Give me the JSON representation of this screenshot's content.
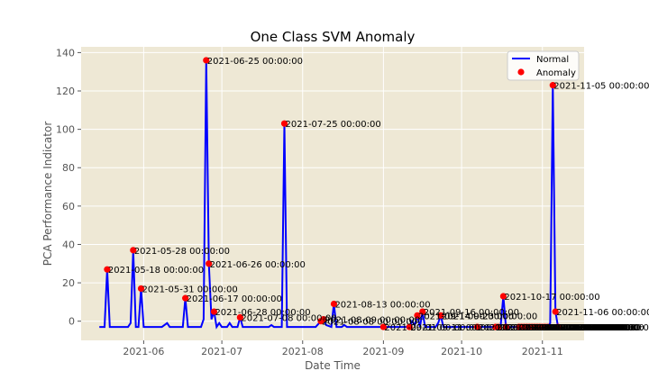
{
  "chart_data": {
    "type": "line",
    "title": "One Class SVM Anomaly",
    "xlabel": "Date Time",
    "ylabel": "PCA Performance Indicator",
    "xlim": [
      "2021-05-08",
      "2021-11-17"
    ],
    "ylim": [
      -10,
      143
    ],
    "grid": true,
    "legend_position": "top-right",
    "colors": {
      "plot_bg": "#EEE8D5",
      "grid": "#ffffff",
      "line": "#0000ff",
      "anomaly": "#ff0000"
    },
    "x_ticks": [
      {
        "date": "2021-06-01",
        "label": "2021-06"
      },
      {
        "date": "2021-07-01",
        "label": "2021-07"
      },
      {
        "date": "2021-08-01",
        "label": "2021-08"
      },
      {
        "date": "2021-09-01",
        "label": "2021-09"
      },
      {
        "date": "2021-10-01",
        "label": "2021-10"
      },
      {
        "date": "2021-11-01",
        "label": "2021-11"
      }
    ],
    "y_ticks": [
      0,
      20,
      40,
      60,
      80,
      100,
      120,
      140
    ],
    "series": [
      {
        "name": "Normal",
        "points": [
          [
            "2021-05-15",
            -3
          ],
          [
            "2021-05-17",
            -3
          ],
          [
            "2021-05-18",
            27
          ],
          [
            "2021-05-19",
            -3
          ],
          [
            "2021-05-26",
            -3
          ],
          [
            "2021-05-27",
            -1
          ],
          [
            "2021-05-28",
            37
          ],
          [
            "2021-05-29",
            -3
          ],
          [
            "2021-05-30",
            -3
          ],
          [
            "2021-05-31",
            17
          ],
          [
            "2021-06-01",
            -3
          ],
          [
            "2021-06-08",
            -3
          ],
          [
            "2021-06-10",
            -1
          ],
          [
            "2021-06-11",
            -3
          ],
          [
            "2021-06-16",
            -3
          ],
          [
            "2021-06-17",
            12
          ],
          [
            "2021-06-18",
            -3
          ],
          [
            "2021-06-23",
            -3
          ],
          [
            "2021-06-24",
            1
          ],
          [
            "2021-06-25",
            136
          ],
          [
            "2021-06-26",
            30
          ],
          [
            "2021-06-27",
            1
          ],
          [
            "2021-06-28",
            5
          ],
          [
            "2021-06-29",
            -3
          ],
          [
            "2021-06-30",
            -1
          ],
          [
            "2021-07-01",
            -3
          ],
          [
            "2021-07-03",
            -3
          ],
          [
            "2021-07-04",
            -1
          ],
          [
            "2021-07-05",
            -3
          ],
          [
            "2021-07-07",
            -3
          ],
          [
            "2021-07-08",
            2
          ],
          [
            "2021-07-09",
            -3
          ],
          [
            "2021-07-19",
            -3
          ],
          [
            "2021-07-20",
            -2
          ],
          [
            "2021-07-21",
            -3
          ],
          [
            "2021-07-24",
            -3
          ],
          [
            "2021-07-25",
            103
          ],
          [
            "2021-07-26",
            -3
          ],
          [
            "2021-08-06",
            -3
          ],
          [
            "2021-08-08",
            0
          ],
          [
            "2021-08-09",
            1
          ],
          [
            "2021-08-10",
            -2
          ],
          [
            "2021-08-12",
            -3
          ],
          [
            "2021-08-13",
            9
          ],
          [
            "2021-08-14",
            -3
          ],
          [
            "2021-08-16",
            -3
          ],
          [
            "2021-08-17",
            -2
          ],
          [
            "2021-08-18",
            -3
          ],
          [
            "2021-09-01",
            -3
          ],
          [
            "2021-09-11",
            -3
          ],
          [
            "2021-09-12",
            0
          ],
          [
            "2021-09-13",
            -2
          ],
          [
            "2021-09-14",
            3
          ],
          [
            "2021-09-15",
            -3
          ],
          [
            "2021-09-16",
            5
          ],
          [
            "2021-09-17",
            -3
          ],
          [
            "2021-09-21",
            -3
          ],
          [
            "2021-09-22",
            -1
          ],
          [
            "2021-09-23",
            3
          ],
          [
            "2021-09-24",
            -3
          ],
          [
            "2021-10-07",
            -3
          ],
          [
            "2021-10-14",
            -3
          ],
          [
            "2021-10-15",
            -3
          ],
          [
            "2021-10-16",
            -2
          ],
          [
            "2021-10-17",
            13
          ],
          [
            "2021-10-18",
            -3
          ],
          [
            "2021-10-25",
            -3
          ],
          [
            "2021-11-03",
            -3
          ],
          [
            "2021-11-04",
            -1
          ],
          [
            "2021-11-05",
            123
          ],
          [
            "2021-11-06",
            5
          ],
          [
            "2021-11-07",
            -3
          ],
          [
            "2021-11-08",
            -3
          ]
        ]
      },
      {
        "name": "Anomaly",
        "points": [
          [
            "2021-05-18",
            27
          ],
          [
            "2021-05-28",
            37
          ],
          [
            "2021-05-31",
            17
          ],
          [
            "2021-06-17",
            12
          ],
          [
            "2021-06-25",
            136
          ],
          [
            "2021-06-26",
            30
          ],
          [
            "2021-06-28",
            5
          ],
          [
            "2021-07-08",
            2
          ],
          [
            "2021-07-25",
            103
          ],
          [
            "2021-08-08",
            0
          ],
          [
            "2021-08-09",
            1
          ],
          [
            "2021-08-13",
            9
          ],
          [
            "2021-09-01",
            -3
          ],
          [
            "2021-09-11",
            -3
          ],
          [
            "2021-09-14",
            3
          ],
          [
            "2021-09-16",
            5
          ],
          [
            "2021-09-23",
            3
          ],
          [
            "2021-10-07",
            -3
          ],
          [
            "2021-10-14",
            -3
          ],
          [
            "2021-10-15",
            -3
          ],
          [
            "2021-10-17",
            13
          ],
          [
            "2021-10-18",
            -3
          ],
          [
            "2021-10-23",
            -3
          ],
          [
            "2021-10-24",
            -3
          ],
          [
            "2021-10-25",
            -3
          ],
          [
            "2021-10-26",
            -3
          ],
          [
            "2021-10-27",
            -3
          ],
          [
            "2021-10-28",
            -3
          ],
          [
            "2021-10-29",
            -3
          ],
          [
            "2021-10-30",
            -3
          ],
          [
            "2021-10-31",
            -3
          ],
          [
            "2021-11-01",
            -3
          ],
          [
            "2021-11-02",
            -3
          ],
          [
            "2021-11-03",
            -3
          ],
          [
            "2021-11-05",
            123
          ],
          [
            "2021-11-06",
            5
          ],
          [
            "2021-11-07",
            -3
          ]
        ]
      }
    ],
    "annotations": [
      {
        "date": "2021-05-18",
        "y": 27,
        "text": "2021-05-18 00:00:00"
      },
      {
        "date": "2021-05-28",
        "y": 37,
        "text": "2021-05-28 00:00:00"
      },
      {
        "date": "2021-05-31",
        "y": 17,
        "text": "2021-05-31 00:00:00"
      },
      {
        "date": "2021-06-17",
        "y": 12,
        "text": "2021-06-17 00:00:00"
      },
      {
        "date": "2021-06-25",
        "y": 136,
        "text": "2021-06-25 00:00:00"
      },
      {
        "date": "2021-06-26",
        "y": 30,
        "text": "2021-06-26 00:00:00"
      },
      {
        "date": "2021-06-28",
        "y": 5,
        "text": "2021-06-28 00:00:00"
      },
      {
        "date": "2021-07-08",
        "y": 2,
        "text": "2021-07-08 00:00:00"
      },
      {
        "date": "2021-07-25",
        "y": 103,
        "text": "2021-07-25 00:00:00"
      },
      {
        "date": "2021-08-08",
        "y": 0,
        "text": "2021-08-08 00:00:00"
      },
      {
        "date": "2021-08-09",
        "y": 1,
        "text": "2021-08-09 00:00:00"
      },
      {
        "date": "2021-08-13",
        "y": 9,
        "text": "2021-08-13 00:00:00"
      },
      {
        "date": "2021-09-01",
        "y": -3,
        "text": "2021-09-01 00:00:00"
      },
      {
        "date": "2021-09-11",
        "y": -3,
        "text": "2021-09-11 00:00:00"
      },
      {
        "date": "2021-09-14",
        "y": 3,
        "text": "2021-09-14 00:00:00"
      },
      {
        "date": "2021-09-16",
        "y": 5,
        "text": "2021-09-16 00:00:00"
      },
      {
        "date": "2021-09-23",
        "y": 3,
        "text": "2021-09-23 00:00:00"
      },
      {
        "date": "2021-10-07",
        "y": -3,
        "text": "2021-10-07 00:00:00"
      },
      {
        "date": "2021-10-14",
        "y": -3,
        "text": "2021-10-14 00:00:00"
      },
      {
        "date": "2021-10-15",
        "y": -3,
        "text": "2021-10-15 00:00:00"
      },
      {
        "date": "2021-10-17",
        "y": 13,
        "text": "2021-10-17 00:00:00"
      },
      {
        "date": "2021-10-18",
        "y": -3,
        "text": "2021-10-18 00:00:00"
      },
      {
        "date": "2021-10-23",
        "y": -3,
        "text": "2021-10-23 00:00:00"
      },
      {
        "date": "2021-10-24",
        "y": -3,
        "text": "2021-10-24 00:00:00"
      },
      {
        "date": "2021-10-25",
        "y": -3,
        "text": "2021-10-25 00:00:00"
      },
      {
        "date": "2021-10-26",
        "y": -3,
        "text": "2021-10-26 00:00:00"
      },
      {
        "date": "2021-10-27",
        "y": -3,
        "text": "2021-10-27 00:00:00"
      },
      {
        "date": "2021-10-28",
        "y": -3,
        "text": "2021-10-28 00:00:00"
      },
      {
        "date": "2021-10-29",
        "y": -3,
        "text": "2021-10-29 00:00:00"
      },
      {
        "date": "2021-10-30",
        "y": -3,
        "text": "2021-10-30 00:00:00"
      },
      {
        "date": "2021-10-31",
        "y": -3,
        "text": "2021-10-31 00:00:00"
      },
      {
        "date": "2021-11-01",
        "y": -3,
        "text": "2021-11-01 00:00:00"
      },
      {
        "date": "2021-11-02",
        "y": -3,
        "text": "2021-11-02 00:00:00"
      },
      {
        "date": "2021-11-03",
        "y": -3,
        "text": "2021-11-03 00:00:00"
      },
      {
        "date": "2021-11-05",
        "y": 123,
        "text": "2021-11-05 00:00:00"
      },
      {
        "date": "2021-11-06",
        "y": 5,
        "text": "2021-11-06 00:00:00"
      },
      {
        "date": "2021-11-07",
        "y": -3,
        "text": "2021-11-07 00:00:00"
      }
    ]
  }
}
